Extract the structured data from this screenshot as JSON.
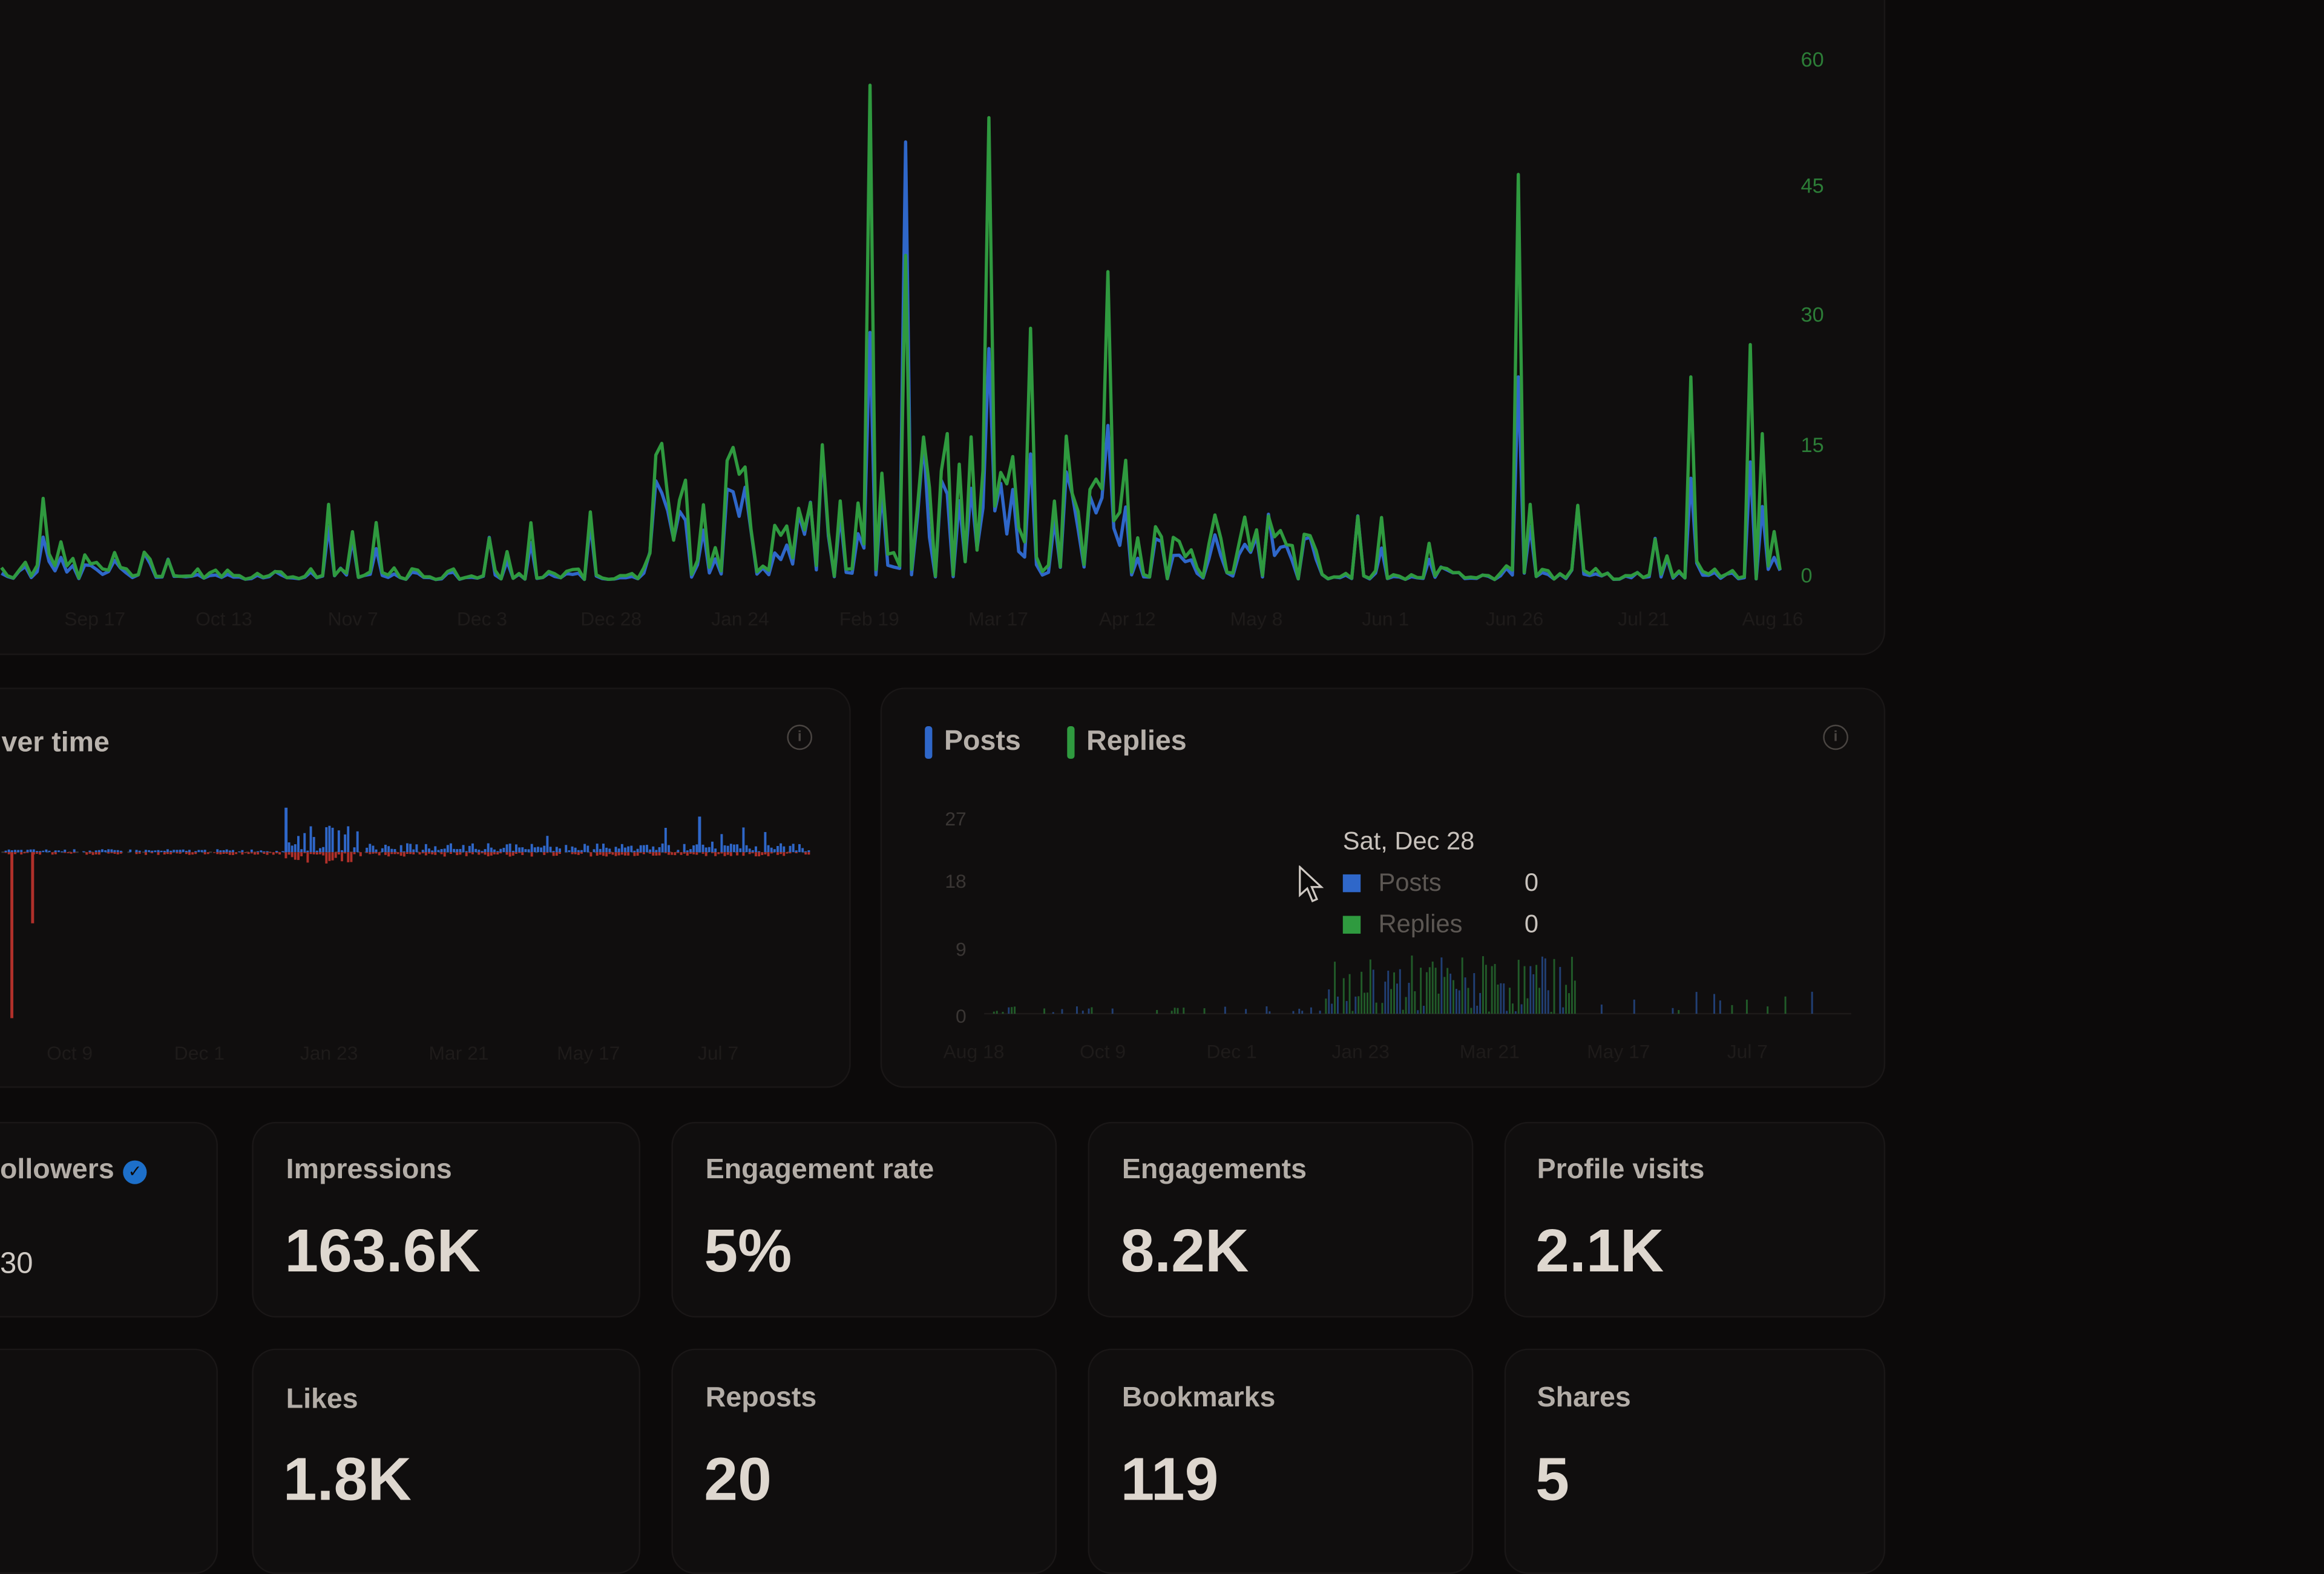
{
  "charts": {
    "top": {
      "y_ticks": [
        "60",
        "45",
        "30",
        "15",
        "0"
      ],
      "x_ticks": [
        "Sep 17",
        "Oct 13",
        "Nov 7",
        "Dec 3",
        "Dec 28",
        "Jan 24",
        "Feb 19",
        "Mar 17",
        "Apr 12",
        "May 8",
        "Jun 1",
        "Jun 26",
        "Jul 21",
        "Aug 16"
      ]
    },
    "over_time": {
      "title": "ver time",
      "x_ticks": [
        "Oct 9",
        "Dec 1",
        "Jan 23",
        "Mar 21",
        "May 17",
        "Jul 7"
      ]
    },
    "posts_replies": {
      "legend": [
        {
          "label": "Posts",
          "color": "#2f67c9"
        },
        {
          "label": "Replies",
          "color": "#2f9a3f"
        }
      ],
      "y_ticks": [
        "27",
        "18",
        "9",
        "0"
      ],
      "x_ticks": [
        "Aug 18",
        "Oct 9",
        "Dec 1",
        "Jan 23",
        "Mar 21",
        "May 17",
        "Jul 7"
      ],
      "tooltip": {
        "date": "Sat, Dec 28",
        "rows": [
          {
            "label": "Posts",
            "value": "0",
            "color": "#2f67c9"
          },
          {
            "label": "Replies",
            "value": "0",
            "color": "#2f9a3f"
          }
        ]
      }
    }
  },
  "metrics": [
    {
      "label": "ollowers",
      "value": "30",
      "verified": true
    },
    {
      "label": "Impressions",
      "value": "163.6K"
    },
    {
      "label": "Engagement rate",
      "value": "5%"
    },
    {
      "label": "Engagements",
      "value": "8.2K"
    },
    {
      "label": "Profile visits",
      "value": "2.1K"
    },
    {
      "label": "Likes",
      "value": "1.8K"
    },
    {
      "label": "Reposts",
      "value": "20"
    },
    {
      "label": "Bookmarks",
      "value": "119"
    },
    {
      "label": "Shares",
      "value": "5"
    }
  ],
  "colors": {
    "posts": "#2f67c9",
    "replies": "#2f9a3f",
    "negative": "#b0302a",
    "positive": "#2f67c9"
  }
}
